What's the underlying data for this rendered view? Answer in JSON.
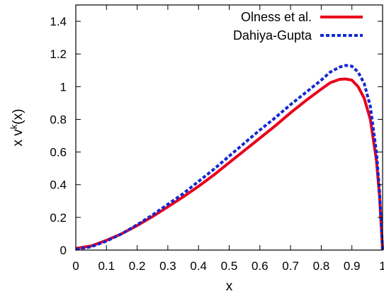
{
  "chart_data": {
    "type": "line",
    "xlabel": "x",
    "ylabel": "x v",
    "ylabel_superscript": "k",
    "ylabel_suffix": "(x)",
    "xlim": [
      0,
      1
    ],
    "ylim": [
      0,
      1.5
    ],
    "x_ticks": [
      0,
      0.1,
      0.2,
      0.3,
      0.4,
      0.5,
      0.6,
      0.7,
      0.8,
      0.9,
      1
    ],
    "x_tick_labels": [
      "0",
      "0.1",
      "0.2",
      "0.3",
      "0.4",
      "0.5",
      "0.6",
      "0.7",
      "0.8",
      "0.9",
      "1"
    ],
    "y_ticks": [
      0,
      0.2,
      0.4,
      0.6,
      0.8,
      1,
      1.2,
      1.4
    ],
    "y_tick_labels": [
      "0",
      "0.2",
      "0.4",
      "0.6",
      "0.8",
      "1",
      "1.2",
      "1.4"
    ],
    "grid": false,
    "legend_position": "top-right",
    "series": [
      {
        "name": "Olness et al.",
        "color": "#e8001c",
        "style": "solid",
        "x": [
          0,
          0.05,
          0.1,
          0.15,
          0.2,
          0.25,
          0.3,
          0.35,
          0.4,
          0.45,
          0.5,
          0.55,
          0.6,
          0.65,
          0.7,
          0.75,
          0.8,
          0.83,
          0.86,
          0.88,
          0.9,
          0.92,
          0.94,
          0.96,
          0.98,
          0.99,
          1.0
        ],
        "values": [
          0.01,
          0.025,
          0.06,
          0.1,
          0.15,
          0.205,
          0.265,
          0.325,
          0.39,
          0.46,
          0.535,
          0.61,
          0.685,
          0.76,
          0.84,
          0.915,
          0.985,
          1.025,
          1.045,
          1.047,
          1.04,
          1.0,
          0.93,
          0.8,
          0.55,
          0.33,
          0.0
        ]
      },
      {
        "name": "Dahiya-Gupta",
        "color": "#1428d2",
        "style": "dashed",
        "x": [
          0,
          0.05,
          0.1,
          0.15,
          0.2,
          0.25,
          0.3,
          0.35,
          0.4,
          0.45,
          0.5,
          0.55,
          0.6,
          0.65,
          0.7,
          0.75,
          0.8,
          0.83,
          0.86,
          0.88,
          0.9,
          0.92,
          0.94,
          0.96,
          0.98,
          0.99,
          1.0
        ],
        "values": [
          0.005,
          0.02,
          0.055,
          0.1,
          0.155,
          0.215,
          0.28,
          0.345,
          0.42,
          0.495,
          0.575,
          0.655,
          0.735,
          0.81,
          0.89,
          0.965,
          1.04,
          1.09,
          1.12,
          1.13,
          1.125,
          1.09,
          1.02,
          0.88,
          0.6,
          0.36,
          0.0
        ]
      }
    ]
  }
}
